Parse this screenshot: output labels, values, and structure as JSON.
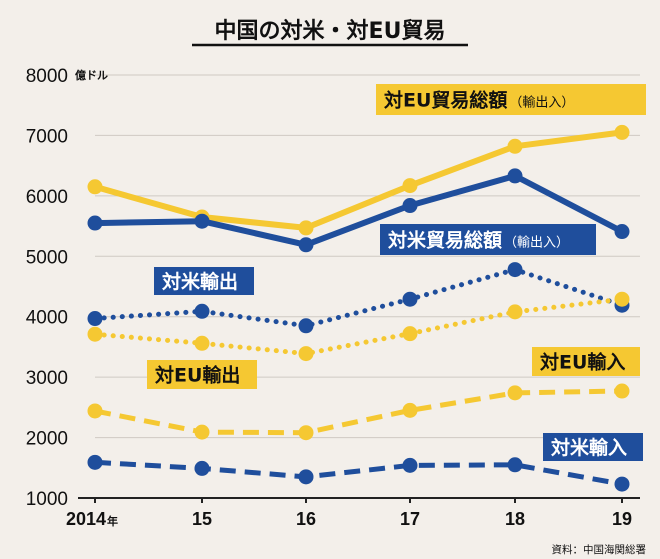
{
  "colors": {
    "background": "#f3efea",
    "yellow": "#f5c832",
    "blue": "#1f4e9c",
    "grid": "#cfcac3",
    "axis": "#222222",
    "text": "#111111",
    "label_text_dark": "#111111",
    "label_text_light": "#ffffff"
  },
  "chart_data": {
    "type": "line",
    "title": "中国の対米・対EU貿易",
    "ylabel_unit": "億ドル",
    "ylim": [
      1000,
      8000
    ],
    "yticks": [
      1000,
      2000,
      3000,
      4000,
      5000,
      6000,
      7000,
      8000
    ],
    "x_tick_labels": [
      "2014",
      "15",
      "16",
      "17",
      "18",
      "19"
    ],
    "x_first_suffix": "年",
    "source": "資料：中国海関総署",
    "grid": "horizontal",
    "series": [
      {
        "name": "対EU貿易総額（輸出入）",
        "title_main": "対EU貿易総額",
        "title_sub": "（輸出入）",
        "color": "yellow",
        "style": "solid",
        "values": [
          6150,
          5650,
          5470,
          6170,
          6820,
          7050
        ]
      },
      {
        "name": "対米貿易総額（輸出入）",
        "title_main": "対米貿易総額",
        "title_sub": "（輸出入）",
        "color": "blue",
        "style": "solid",
        "values": [
          5550,
          5580,
          5190,
          5840,
          6330,
          5410
        ]
      },
      {
        "name": "対米輸出",
        "title_main": "対米輸出",
        "title_sub": "",
        "color": "blue",
        "style": "dotted",
        "values": [
          3970,
          4090,
          3850,
          4290,
          4780,
          4190
        ]
      },
      {
        "name": "対EU輸出",
        "title_main": "対EU輸出",
        "title_sub": "",
        "color": "yellow",
        "style": "dotted",
        "values": [
          3710,
          3560,
          3390,
          3720,
          4080,
          4290
        ]
      },
      {
        "name": "対EU輸入",
        "title_main": "対EU輸入",
        "title_sub": "",
        "color": "yellow",
        "style": "dashed",
        "values": [
          2440,
          2090,
          2080,
          2450,
          2740,
          2770
        ]
      },
      {
        "name": "対米輸入",
        "title_main": "対米輸入",
        "title_sub": "",
        "color": "blue",
        "style": "dashed",
        "values": [
          1590,
          1490,
          1350,
          1540,
          1550,
          1230
        ]
      }
    ]
  }
}
